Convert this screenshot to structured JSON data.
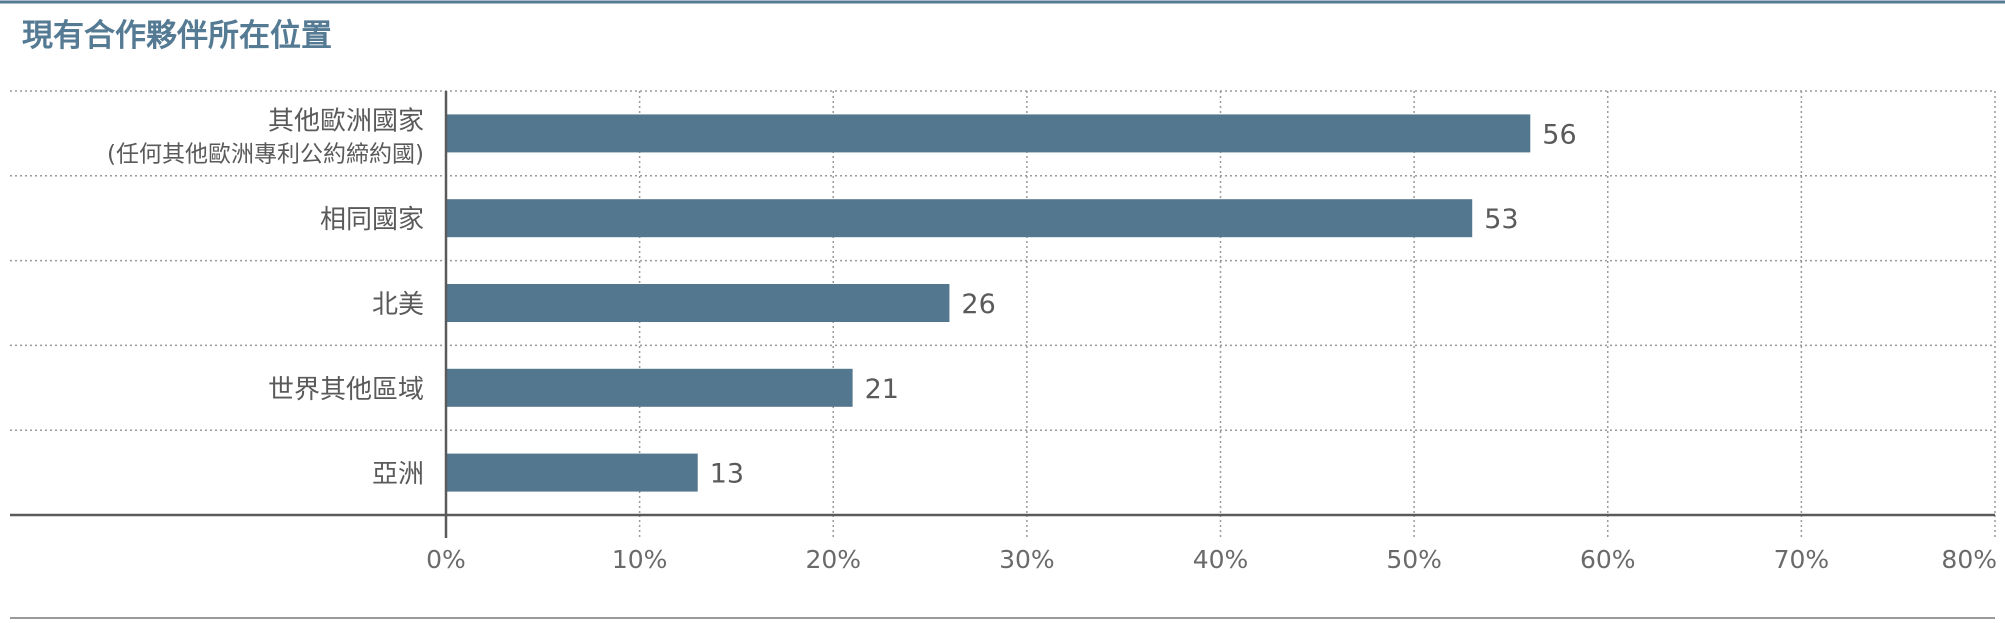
{
  "chart_data": {
    "type": "bar",
    "orientation": "horizontal",
    "title": "現有合作夥伴所在位置",
    "categories": [
      {
        "label": "其他歐洲國家",
        "sublabel": "(任何其他歐洲專利公約締約國)"
      },
      {
        "label": "相同國家"
      },
      {
        "label": "北美"
      },
      {
        "label": "世界其他區域"
      },
      {
        "label": "亞洲"
      }
    ],
    "values": [
      56,
      53,
      26,
      21,
      13
    ],
    "value_labels": [
      "56",
      "53",
      "26",
      "21",
      "13"
    ],
    "xlim": [
      0,
      80
    ],
    "xticks": [
      0,
      10,
      20,
      30,
      40,
      50,
      60,
      70,
      80
    ],
    "xtick_labels": [
      "0%",
      "10%",
      "20%",
      "30%",
      "40%",
      "50%",
      "60%",
      "70%",
      "80%"
    ],
    "grid": true,
    "colors": {
      "bar": "#53778f",
      "title": "#557a93",
      "top_rule": "#557a93",
      "axis": "#5a5a5a",
      "grid": "#9a9a9a",
      "text": "#5a5a5a"
    }
  }
}
